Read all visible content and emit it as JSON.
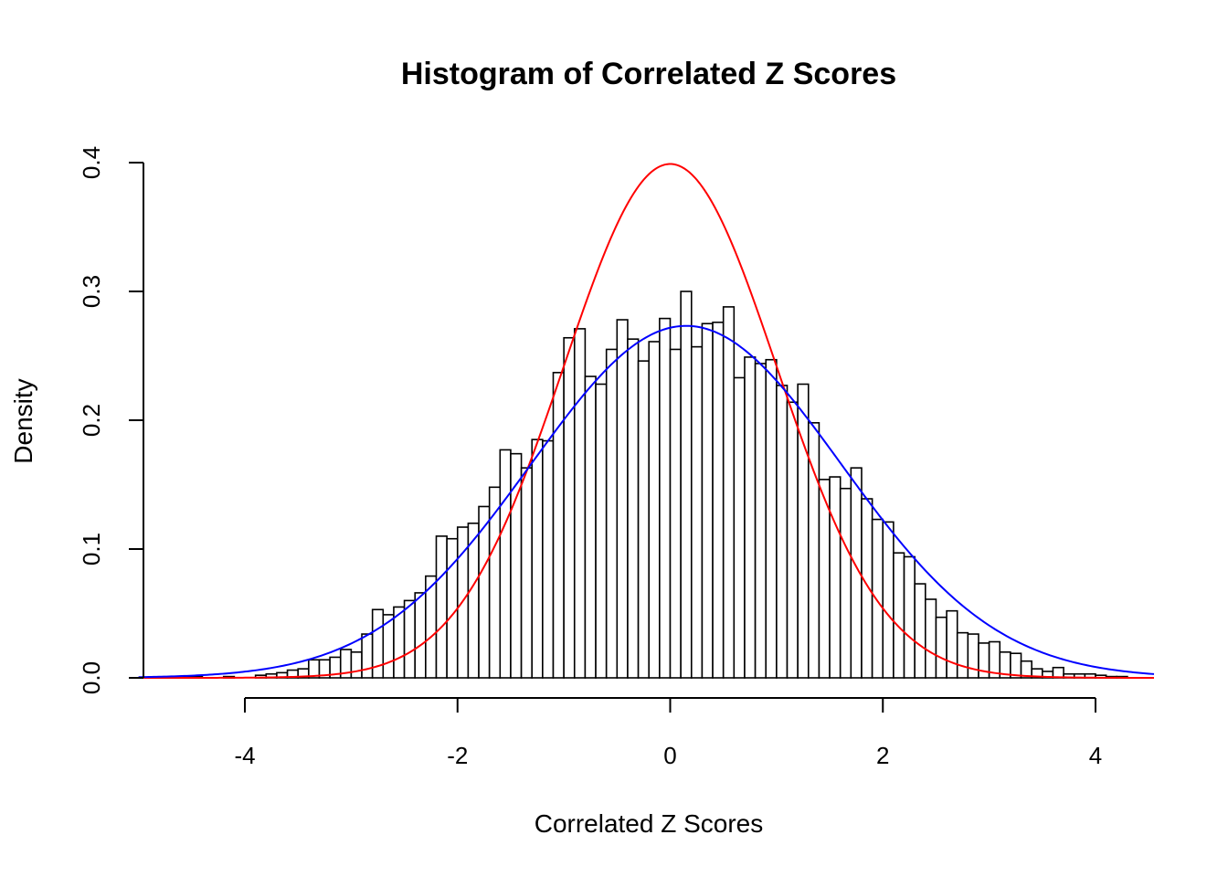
{
  "chart_data": {
    "type": "bar",
    "title": "Histogram of Correlated Z Scores",
    "xlabel": "Correlated Z Scores",
    "ylabel": "Density",
    "xlim": [
      -5.0,
      4.55
    ],
    "ylim": [
      0,
      0.4
    ],
    "x_ticks": [
      -4,
      -2,
      0,
      2,
      4
    ],
    "x_tick_labels": [
      "-4",
      "-2",
      "0",
      "2",
      "4"
    ],
    "y_ticks": [
      0.0,
      0.1,
      0.2,
      0.3,
      0.4
    ],
    "y_tick_labels": [
      "0.0",
      "0.1",
      "0.2",
      "0.3",
      "0.4"
    ],
    "grid": false,
    "legend": "none",
    "bin_start": -4.6,
    "bin_width": 0.1,
    "densities": [
      0.001,
      0.001,
      0.0,
      0.0,
      0.001,
      0.0,
      0.0,
      0.002,
      0.003,
      0.004,
      0.006,
      0.007,
      0.014,
      0.014,
      0.016,
      0.022,
      0.02,
      0.034,
      0.053,
      0.049,
      0.055,
      0.06,
      0.066,
      0.079,
      0.11,
      0.108,
      0.117,
      0.12,
      0.133,
      0.148,
      0.177,
      0.174,
      0.163,
      0.185,
      0.184,
      0.237,
      0.264,
      0.271,
      0.234,
      0.228,
      0.255,
      0.278,
      0.263,
      0.246,
      0.261,
      0.279,
      0.255,
      0.3,
      0.257,
      0.275,
      0.276,
      0.288,
      0.233,
      0.249,
      0.244,
      0.247,
      0.227,
      0.214,
      0.228,
      0.198,
      0.154,
      0.156,
      0.147,
      0.163,
      0.139,
      0.123,
      0.121,
      0.097,
      0.094,
      0.073,
      0.061,
      0.047,
      0.052,
      0.035,
      0.034,
      0.027,
      0.028,
      0.02,
      0.019,
      0.013,
      0.007,
      0.005,
      0.008,
      0.003,
      0.003,
      0.003,
      0.002,
      0.001,
      0.001
    ],
    "series": [
      {
        "name": "",
        "color": "#ff0000",
        "kind": "normal-density",
        "mean": 0,
        "sd": 1
      },
      {
        "name": "",
        "color": "#0000ff",
        "kind": "normal-density",
        "mean": 0.15,
        "sd": 1.46
      }
    ]
  }
}
